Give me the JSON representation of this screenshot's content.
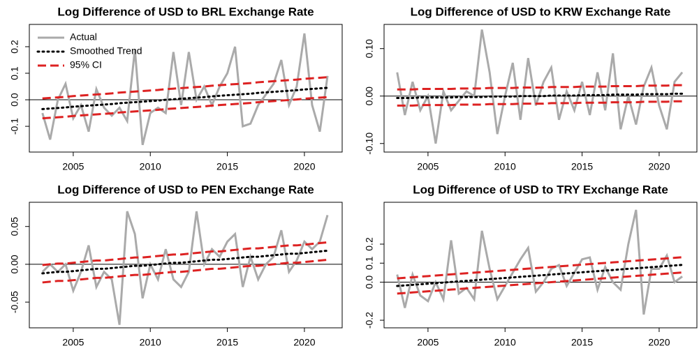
{
  "chart_data": [
    {
      "type": "line",
      "title": "Log Difference of USD to BRL Exchange Rate",
      "legend": "topleft",
      "x": [
        2003,
        2003.5,
        2004,
        2004.5,
        2005,
        2005.5,
        2006,
        2006.5,
        2007,
        2007.5,
        2008,
        2008.5,
        2009,
        2009.5,
        2010,
        2010.5,
        2011,
        2011.5,
        2012,
        2012.5,
        2013,
        2013.5,
        2014,
        2014.5,
        2015,
        2015.5,
        2016,
        2016.5,
        2017,
        2017.5,
        2018,
        2018.5,
        2019,
        2019.5,
        2020,
        2020.5,
        2021,
        2021.5
      ],
      "xlim": [
        2002.15,
        2022.45
      ],
      "xticks": [
        2005,
        2010,
        2015,
        2020
      ],
      "ylim": [
        -0.197,
        0.284
      ],
      "yticks": [
        -0.1,
        {
          "value": 0,
          "label": "0.0"
        },
        0.1,
        0.2
      ],
      "hline": 0,
      "series": [
        {
          "name": "Actual",
          "color": "#aaaaaa",
          "linestyle": "solid",
          "values": [
            -0.05,
            -0.15,
            0.0,
            0.06,
            -0.07,
            -0.02,
            -0.12,
            0.04,
            -0.03,
            -0.06,
            -0.03,
            -0.08,
            0.19,
            -0.17,
            -0.05,
            -0.03,
            -0.05,
            0.18,
            -0.02,
            0.18,
            0.0,
            0.05,
            -0.02,
            0.05,
            0.1,
            0.2,
            -0.1,
            -0.09,
            -0.02,
            0.02,
            0.06,
            0.15,
            -0.02,
            0.05,
            0.25,
            -0.02,
            -0.12,
            0.09
          ]
        },
        {
          "name": "Smoothed Trend",
          "color": "#000000",
          "linestyle": "dotted",
          "values": [
            -0.035,
            -0.033,
            -0.031,
            -0.029,
            -0.026,
            -0.024,
            -0.022,
            -0.02,
            -0.018,
            -0.016,
            -0.013,
            -0.011,
            -0.009,
            -0.007,
            -0.005,
            -0.003,
            0.0,
            0.002,
            0.004,
            0.006,
            0.008,
            0.01,
            0.013,
            0.015,
            0.017,
            0.019,
            0.021,
            0.023,
            0.026,
            0.028,
            0.03,
            0.032,
            0.034,
            0.036,
            0.039,
            0.041,
            0.043,
            0.045
          ]
        },
        {
          "name": "95% CI",
          "color": "#dd2222",
          "linestyle": "dashed",
          "values": [
            -0.07,
            -0.068,
            -0.066,
            -0.064,
            -0.061,
            -0.059,
            -0.057,
            -0.055,
            -0.053,
            -0.051,
            -0.048,
            -0.046,
            -0.044,
            -0.042,
            -0.04,
            -0.038,
            -0.035,
            -0.033,
            -0.031,
            -0.029,
            -0.027,
            -0.025,
            -0.022,
            -0.02,
            -0.018,
            -0.016,
            -0.014,
            -0.012,
            -0.009,
            -0.007,
            -0.005,
            -0.003,
            -0.001,
            0.001,
            0.004,
            0.006,
            0.008,
            0.01
          ]
        },
        {
          "color": "#dd2222",
          "linestyle": "dashed",
          "values": [
            0.005,
            0.007,
            0.009,
            0.011,
            0.014,
            0.016,
            0.018,
            0.02,
            0.022,
            0.024,
            0.027,
            0.029,
            0.031,
            0.033,
            0.035,
            0.037,
            0.04,
            0.042,
            0.044,
            0.046,
            0.048,
            0.05,
            0.053,
            0.055,
            0.057,
            0.059,
            0.061,
            0.063,
            0.066,
            0.068,
            0.07,
            0.072,
            0.074,
            0.076,
            0.079,
            0.081,
            0.083,
            0.085
          ]
        }
      ]
    },
    {
      "type": "line",
      "title": "Log Difference of USD to KRW Exchange Rate",
      "x": [
        2003,
        2003.5,
        2004,
        2004.5,
        2005,
        2005.5,
        2006,
        2006.5,
        2007,
        2007.5,
        2008,
        2008.5,
        2009,
        2009.5,
        2010,
        2010.5,
        2011,
        2011.5,
        2012,
        2012.5,
        2013,
        2013.5,
        2014,
        2014.5,
        2015,
        2015.5,
        2016,
        2016.5,
        2017,
        2017.5,
        2018,
        2018.5,
        2019,
        2019.5,
        2020,
        2020.5,
        2021,
        2021.5
      ],
      "xlim": [
        2002.15,
        2022.45
      ],
      "xticks": [
        2005,
        2010,
        2015,
        2020
      ],
      "ylim": [
        -0.118,
        0.151
      ],
      "yticks": [
        {
          "value": -0.1,
          "label": "-0.10"
        },
        {
          "value": 0,
          "label": "0.00"
        },
        {
          "value": 0.1,
          "label": "0.10"
        }
      ],
      "hline": 0,
      "series": [
        {
          "color": "#aaaaaa",
          "linestyle": "solid",
          "values": [
            0.05,
            -0.04,
            0.03,
            -0.03,
            0.0,
            -0.1,
            0.01,
            -0.03,
            -0.01,
            0.01,
            0.0,
            0.14,
            0.05,
            -0.08,
            0.0,
            0.07,
            -0.05,
            0.08,
            -0.02,
            0.03,
            0.06,
            -0.05,
            0.01,
            -0.03,
            0.03,
            -0.04,
            0.05,
            -0.03,
            0.09,
            -0.07,
            0.0,
            -0.06,
            0.02,
            0.06,
            -0.02,
            -0.07,
            0.03,
            0.05
          ]
        },
        {
          "color": "#000000",
          "linestyle": "dotted",
          "values": [
            -0.004,
            -0.004,
            -0.004,
            -0.003,
            -0.003,
            -0.003,
            -0.003,
            -0.003,
            -0.002,
            -0.002,
            -0.002,
            -0.002,
            -0.001,
            -0.001,
            -0.001,
            -0.001,
            0.0,
            0.0,
            0.0,
            0.0,
            0.001,
            0.001,
            0.001,
            0.001,
            0.002,
            0.002,
            0.002,
            0.002,
            0.003,
            0.003,
            0.003,
            0.003,
            0.004,
            0.004,
            0.004,
            0.004,
            0.005,
            0.005
          ]
        },
        {
          "color": "#dd2222",
          "linestyle": "dashed",
          "values": [
            -0.02,
            -0.02,
            -0.02,
            -0.019,
            -0.019,
            -0.019,
            -0.019,
            -0.019,
            -0.018,
            -0.018,
            -0.018,
            -0.018,
            -0.017,
            -0.017,
            -0.017,
            -0.017,
            -0.016,
            -0.016,
            -0.016,
            -0.016,
            -0.015,
            -0.015,
            -0.015,
            -0.015,
            -0.014,
            -0.014,
            -0.014,
            -0.014,
            -0.013,
            -0.013,
            -0.013,
            -0.013,
            -0.012,
            -0.012,
            -0.012,
            -0.012,
            -0.011,
            -0.011
          ]
        },
        {
          "color": "#dd2222",
          "linestyle": "dashed",
          "values": [
            0.014,
            0.014,
            0.014,
            0.015,
            0.015,
            0.015,
            0.015,
            0.015,
            0.016,
            0.016,
            0.016,
            0.016,
            0.017,
            0.017,
            0.017,
            0.017,
            0.018,
            0.018,
            0.018,
            0.018,
            0.019,
            0.019,
            0.019,
            0.019,
            0.02,
            0.02,
            0.02,
            0.02,
            0.021,
            0.021,
            0.021,
            0.021,
            0.022,
            0.022,
            0.022,
            0.022,
            0.023,
            0.023
          ]
        }
      ]
    },
    {
      "type": "line",
      "title": "Log Difference of USD to PEN Exchange Rate",
      "x": [
        2003,
        2003.5,
        2004,
        2004.5,
        2005,
        2005.5,
        2006,
        2006.5,
        2007,
        2007.5,
        2008,
        2008.5,
        2009,
        2009.5,
        2010,
        2010.5,
        2011,
        2011.5,
        2012,
        2012.5,
        2013,
        2013.5,
        2014,
        2014.5,
        2015,
        2015.5,
        2016,
        2016.5,
        2017,
        2017.5,
        2018,
        2018.5,
        2019,
        2019.5,
        2020,
        2020.5,
        2021,
        2021.5
      ],
      "xlim": [
        2002.15,
        2022.45
      ],
      "xticks": [
        2005,
        2010,
        2015,
        2020
      ],
      "ylim": [
        -0.084,
        0.082
      ],
      "yticks": [
        -0.05,
        {
          "value": 0,
          "label": "0.00"
        },
        0.05
      ],
      "hline": 0,
      "series": [
        {
          "color": "#aaaaaa",
          "linestyle": "solid",
          "values": [
            -0.01,
            0.0,
            -0.01,
            0.0,
            -0.035,
            -0.01,
            0.025,
            -0.03,
            -0.01,
            -0.02,
            -0.08,
            0.07,
            0.04,
            -0.045,
            0.0,
            -0.02,
            0.02,
            -0.02,
            -0.03,
            -0.01,
            0.07,
            0.0,
            0.02,
            0.01,
            0.03,
            0.04,
            -0.03,
            0.01,
            -0.02,
            0.0,
            0.01,
            0.045,
            -0.01,
            0.005,
            0.03,
            0.02,
            0.03,
            0.065
          ]
        },
        {
          "color": "#000000",
          "linestyle": "dotted",
          "values": [
            -0.012,
            -0.011,
            -0.01,
            -0.01,
            -0.009,
            -0.008,
            -0.007,
            -0.006,
            -0.006,
            -0.005,
            -0.004,
            -0.003,
            -0.002,
            -0.002,
            -0.001,
            0.0,
            0.001,
            0.002,
            0.002,
            0.003,
            0.004,
            0.005,
            0.006,
            0.006,
            0.007,
            0.008,
            0.009,
            0.01,
            0.01,
            0.011,
            0.012,
            0.013,
            0.014,
            0.014,
            0.015,
            0.016,
            0.017,
            0.018
          ]
        },
        {
          "color": "#dd2222",
          "linestyle": "dashed",
          "values": [
            -0.024,
            -0.023,
            -0.022,
            -0.022,
            -0.021,
            -0.02,
            -0.019,
            -0.018,
            -0.018,
            -0.017,
            -0.016,
            -0.015,
            -0.014,
            -0.014,
            -0.013,
            -0.012,
            -0.011,
            -0.01,
            -0.01,
            -0.009,
            -0.008,
            -0.007,
            -0.006,
            -0.006,
            -0.005,
            -0.004,
            -0.003,
            -0.002,
            -0.002,
            -0.001,
            0.0,
            0.001,
            0.002,
            0.002,
            0.003,
            0.004,
            0.005,
            0.006
          ]
        },
        {
          "color": "#dd2222",
          "linestyle": "dashed",
          "values": [
            -0.001,
            0.0,
            0.001,
            0.001,
            0.002,
            0.003,
            0.004,
            0.005,
            0.005,
            0.006,
            0.007,
            0.008,
            0.009,
            0.009,
            0.01,
            0.011,
            0.012,
            0.013,
            0.013,
            0.014,
            0.015,
            0.016,
            0.017,
            0.017,
            0.018,
            0.019,
            0.02,
            0.021,
            0.021,
            0.022,
            0.023,
            0.024,
            0.025,
            0.025,
            0.026,
            0.027,
            0.028,
            0.029
          ]
        }
      ]
    },
    {
      "type": "line",
      "title": "Log Difference of USD to TRY Exchange Rate",
      "x": [
        2003,
        2003.5,
        2004,
        2004.5,
        2005,
        2005.5,
        2006,
        2006.5,
        2007,
        2007.5,
        2008,
        2008.5,
        2009,
        2009.5,
        2010,
        2010.5,
        2011,
        2011.5,
        2012,
        2012.5,
        2013,
        2013.5,
        2014,
        2014.5,
        2015,
        2015.5,
        2016,
        2016.5,
        2017,
        2017.5,
        2018,
        2018.5,
        2019,
        2019.5,
        2020,
        2020.5,
        2021,
        2021.5
      ],
      "xlim": [
        2002.15,
        2022.45
      ],
      "xticks": [
        2005,
        2010,
        2015,
        2020
      ],
      "ylim": [
        -0.24,
        0.42
      ],
      "yticks": [
        -0.2,
        {
          "value": 0,
          "label": "0.0"
        },
        0.1,
        0.2
      ],
      "hline": 0,
      "series": [
        {
          "color": "#aaaaaa",
          "linestyle": "solid",
          "values": [
            0.04,
            -0.135,
            0.04,
            -0.07,
            -0.1,
            0.0,
            -0.09,
            0.22,
            -0.06,
            -0.03,
            -0.09,
            0.27,
            0.07,
            -0.09,
            -0.02,
            0.05,
            0.12,
            0.18,
            -0.05,
            0.0,
            0.07,
            0.09,
            -0.02,
            0.05,
            0.12,
            0.13,
            -0.04,
            0.08,
            0.0,
            -0.04,
            0.2,
            0.38,
            -0.17,
            0.07,
            0.07,
            0.14,
            0.0,
            0.03
          ]
        },
        {
          "color": "#000000",
          "linestyle": "dotted",
          "values": [
            -0.02,
            -0.017,
            -0.014,
            -0.011,
            -0.008,
            -0.005,
            -0.002,
            0.001,
            0.004,
            0.007,
            0.01,
            0.013,
            0.016,
            0.019,
            0.022,
            0.025,
            0.028,
            0.031,
            0.034,
            0.037,
            0.04,
            0.043,
            0.046,
            0.049,
            0.052,
            0.055,
            0.058,
            0.061,
            0.064,
            0.067,
            0.07,
            0.073,
            0.076,
            0.079,
            0.082,
            0.085,
            0.088,
            0.091
          ]
        },
        {
          "color": "#dd2222",
          "linestyle": "dashed",
          "values": [
            -0.06,
            -0.057,
            -0.054,
            -0.051,
            -0.048,
            -0.045,
            -0.042,
            -0.039,
            -0.036,
            -0.033,
            -0.03,
            -0.027,
            -0.024,
            -0.021,
            -0.018,
            -0.015,
            -0.012,
            -0.009,
            -0.006,
            -0.003,
            0.0,
            0.003,
            0.006,
            0.009,
            0.012,
            0.015,
            0.018,
            0.021,
            0.024,
            0.027,
            0.03,
            0.033,
            0.036,
            0.039,
            0.042,
            0.045,
            0.048,
            0.051
          ]
        },
        {
          "color": "#dd2222",
          "linestyle": "dashed",
          "values": [
            0.02,
            0.023,
            0.026,
            0.029,
            0.032,
            0.035,
            0.038,
            0.041,
            0.044,
            0.047,
            0.05,
            0.053,
            0.056,
            0.059,
            0.062,
            0.065,
            0.068,
            0.071,
            0.074,
            0.077,
            0.08,
            0.083,
            0.086,
            0.089,
            0.092,
            0.095,
            0.098,
            0.101,
            0.104,
            0.107,
            0.11,
            0.113,
            0.116,
            0.119,
            0.122,
            0.125,
            0.128,
            0.131
          ]
        }
      ]
    }
  ]
}
